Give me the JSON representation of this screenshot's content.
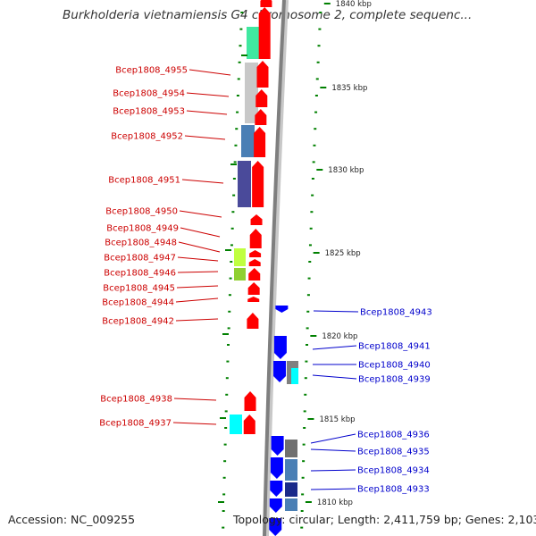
{
  "title": "Burkholderia vietnamiensis G4 chromosome 2, complete sequenc...",
  "accession": "Accession: NC_009255",
  "topology": "Topology: circular; Length: 2,411,759 bp; Genes: 2,103",
  "colors": {
    "forward_gene": "#ff0000",
    "reverse_gene": "#0000ff",
    "forward_label": "#cc0000",
    "reverse_label": "#0000cc",
    "tick": "#008000",
    "backbone": "#7f7f7f"
  },
  "scale_ticks": [
    {
      "label": "1840 kbp",
      "value_kbp": 1840
    },
    {
      "label": "1835 kbp",
      "value_kbp": 1835
    },
    {
      "label": "1830 kbp",
      "value_kbp": 1830
    },
    {
      "label": "1825 kbp",
      "value_kbp": 1825
    },
    {
      "label": "1820 kbp",
      "value_kbp": 1820
    },
    {
      "label": "1815 kbp",
      "value_kbp": 1815
    },
    {
      "label": "1810 kbp",
      "value_kbp": 1810
    }
  ],
  "forward_genes": [
    {
      "label": "Bcep1808_4955"
    },
    {
      "label": "Bcep1808_4954"
    },
    {
      "label": "Bcep1808_4953"
    },
    {
      "label": "Bcep1808_4952"
    },
    {
      "label": "Bcep1808_4951"
    },
    {
      "label": "Bcep1808_4950"
    },
    {
      "label": "Bcep1808_4949"
    },
    {
      "label": "Bcep1808_4948"
    },
    {
      "label": "Bcep1808_4947"
    },
    {
      "label": "Bcep1808_4946"
    },
    {
      "label": "Bcep1808_4945"
    },
    {
      "label": "Bcep1808_4944"
    },
    {
      "label": "Bcep1808_4942"
    },
    {
      "label": "Bcep1808_4938"
    },
    {
      "label": "Bcep1808_4937"
    }
  ],
  "reverse_genes": [
    {
      "label": "Bcep1808_4943"
    },
    {
      "label": "Bcep1808_4941"
    },
    {
      "label": "Bcep1808_4940"
    },
    {
      "label": "Bcep1808_4939"
    },
    {
      "label": "Bcep1808_4936"
    },
    {
      "label": "Bcep1808_4935"
    },
    {
      "label": "Bcep1808_4934"
    },
    {
      "label": "Bcep1808_4933"
    }
  ]
}
